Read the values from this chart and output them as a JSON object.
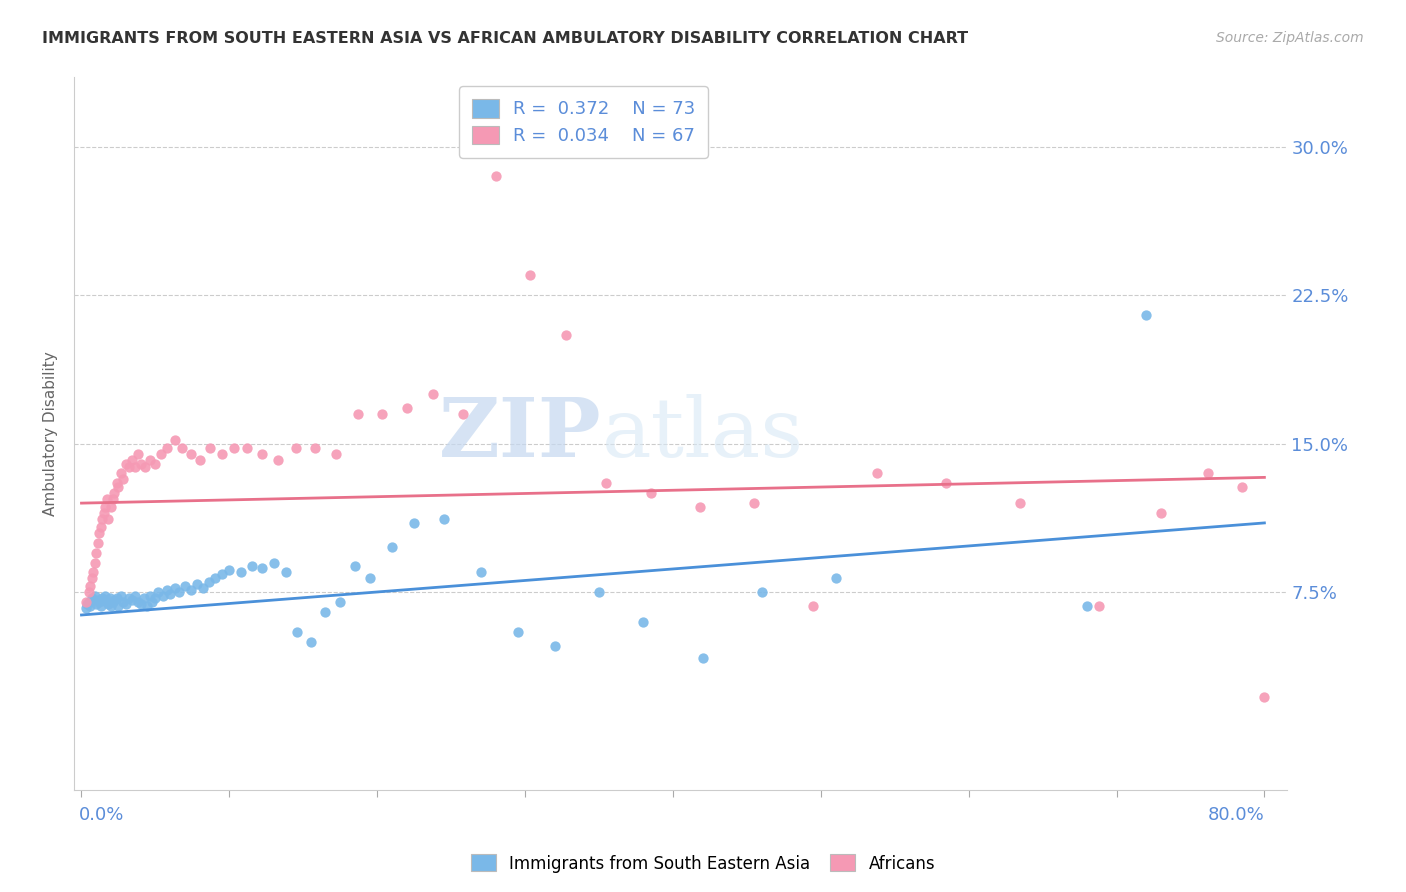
{
  "title": "IMMIGRANTS FROM SOUTH EASTERN ASIA VS AFRICAN AMBULATORY DISABILITY CORRELATION CHART",
  "source": "Source: ZipAtlas.com",
  "ylabel": "Ambulatory Disability",
  "ytick_labels": [
    "7.5%",
    "15.0%",
    "22.5%",
    "30.0%"
  ],
  "ytick_vals": [
    0.075,
    0.15,
    0.225,
    0.3
  ],
  "xlim": [
    0.0,
    0.8
  ],
  "ylim": [
    -0.025,
    0.335
  ],
  "color_blue": "#7ab8e8",
  "color_pink": "#f599b4",
  "color_blue_line": "#4a90d9",
  "color_pink_line": "#e8708a",
  "color_axis_label": "#5b8dd9",
  "color_title": "#333333",
  "color_source": "#aaaaaa",
  "watermark_zip": "ZIP",
  "watermark_atlas": "atlas",
  "blue_x": [
    0.003,
    0.004,
    0.005,
    0.006,
    0.007,
    0.008,
    0.009,
    0.01,
    0.011,
    0.012,
    0.013,
    0.014,
    0.015,
    0.016,
    0.017,
    0.018,
    0.019,
    0.02,
    0.021,
    0.022,
    0.024,
    0.025,
    0.027,
    0.028,
    0.03,
    0.032,
    0.034,
    0.036,
    0.038,
    0.04,
    0.042,
    0.044,
    0.046,
    0.048,
    0.05,
    0.052,
    0.055,
    0.058,
    0.06,
    0.063,
    0.066,
    0.07,
    0.074,
    0.078,
    0.082,
    0.086,
    0.09,
    0.095,
    0.1,
    0.108,
    0.115,
    0.122,
    0.13,
    0.138,
    0.146,
    0.155,
    0.165,
    0.175,
    0.185,
    0.195,
    0.21,
    0.225,
    0.245,
    0.27,
    0.295,
    0.32,
    0.35,
    0.38,
    0.42,
    0.46,
    0.51,
    0.68,
    0.72
  ],
  "blue_y": [
    0.067,
    0.069,
    0.07,
    0.068,
    0.072,
    0.071,
    0.073,
    0.069,
    0.071,
    0.07,
    0.068,
    0.072,
    0.071,
    0.073,
    0.07,
    0.069,
    0.072,
    0.068,
    0.07,
    0.071,
    0.072,
    0.068,
    0.073,
    0.07,
    0.069,
    0.072,
    0.071,
    0.073,
    0.07,
    0.069,
    0.072,
    0.068,
    0.073,
    0.07,
    0.072,
    0.075,
    0.073,
    0.076,
    0.074,
    0.077,
    0.075,
    0.078,
    0.076,
    0.079,
    0.077,
    0.08,
    0.082,
    0.084,
    0.086,
    0.085,
    0.088,
    0.087,
    0.09,
    0.085,
    0.055,
    0.05,
    0.065,
    0.07,
    0.088,
    0.082,
    0.098,
    0.11,
    0.112,
    0.085,
    0.055,
    0.048,
    0.075,
    0.06,
    0.042,
    0.075,
    0.082,
    0.068,
    0.215
  ],
  "pink_x": [
    0.003,
    0.005,
    0.006,
    0.007,
    0.008,
    0.009,
    0.01,
    0.011,
    0.012,
    0.013,
    0.014,
    0.015,
    0.016,
    0.017,
    0.018,
    0.02,
    0.021,
    0.022,
    0.024,
    0.025,
    0.027,
    0.028,
    0.03,
    0.032,
    0.034,
    0.036,
    0.038,
    0.04,
    0.043,
    0.046,
    0.05,
    0.054,
    0.058,
    0.063,
    0.068,
    0.074,
    0.08,
    0.087,
    0.095,
    0.103,
    0.112,
    0.122,
    0.133,
    0.145,
    0.158,
    0.172,
    0.187,
    0.203,
    0.22,
    0.238,
    0.258,
    0.28,
    0.303,
    0.328,
    0.355,
    0.385,
    0.418,
    0.455,
    0.495,
    0.538,
    0.585,
    0.635,
    0.688,
    0.73,
    0.762,
    0.785,
    0.8
  ],
  "pink_y": [
    0.07,
    0.075,
    0.078,
    0.082,
    0.085,
    0.09,
    0.095,
    0.1,
    0.105,
    0.108,
    0.112,
    0.115,
    0.118,
    0.122,
    0.112,
    0.118,
    0.122,
    0.125,
    0.13,
    0.128,
    0.135,
    0.132,
    0.14,
    0.138,
    0.142,
    0.138,
    0.145,
    0.14,
    0.138,
    0.142,
    0.14,
    0.145,
    0.148,
    0.152,
    0.148,
    0.145,
    0.142,
    0.148,
    0.145,
    0.148,
    0.148,
    0.145,
    0.142,
    0.148,
    0.148,
    0.145,
    0.165,
    0.165,
    0.168,
    0.175,
    0.165,
    0.285,
    0.235,
    0.205,
    0.13,
    0.125,
    0.118,
    0.12,
    0.068,
    0.135,
    0.13,
    0.12,
    0.068,
    0.115,
    0.135,
    0.128,
    0.022
  ],
  "blue_line_x": [
    0.0,
    0.8
  ],
  "blue_line_y_start": 0.0635,
  "blue_line_y_end": 0.11,
  "pink_line_x": [
    0.0,
    0.8
  ],
  "pink_line_y_start": 0.12,
  "pink_line_y_end": 0.133
}
